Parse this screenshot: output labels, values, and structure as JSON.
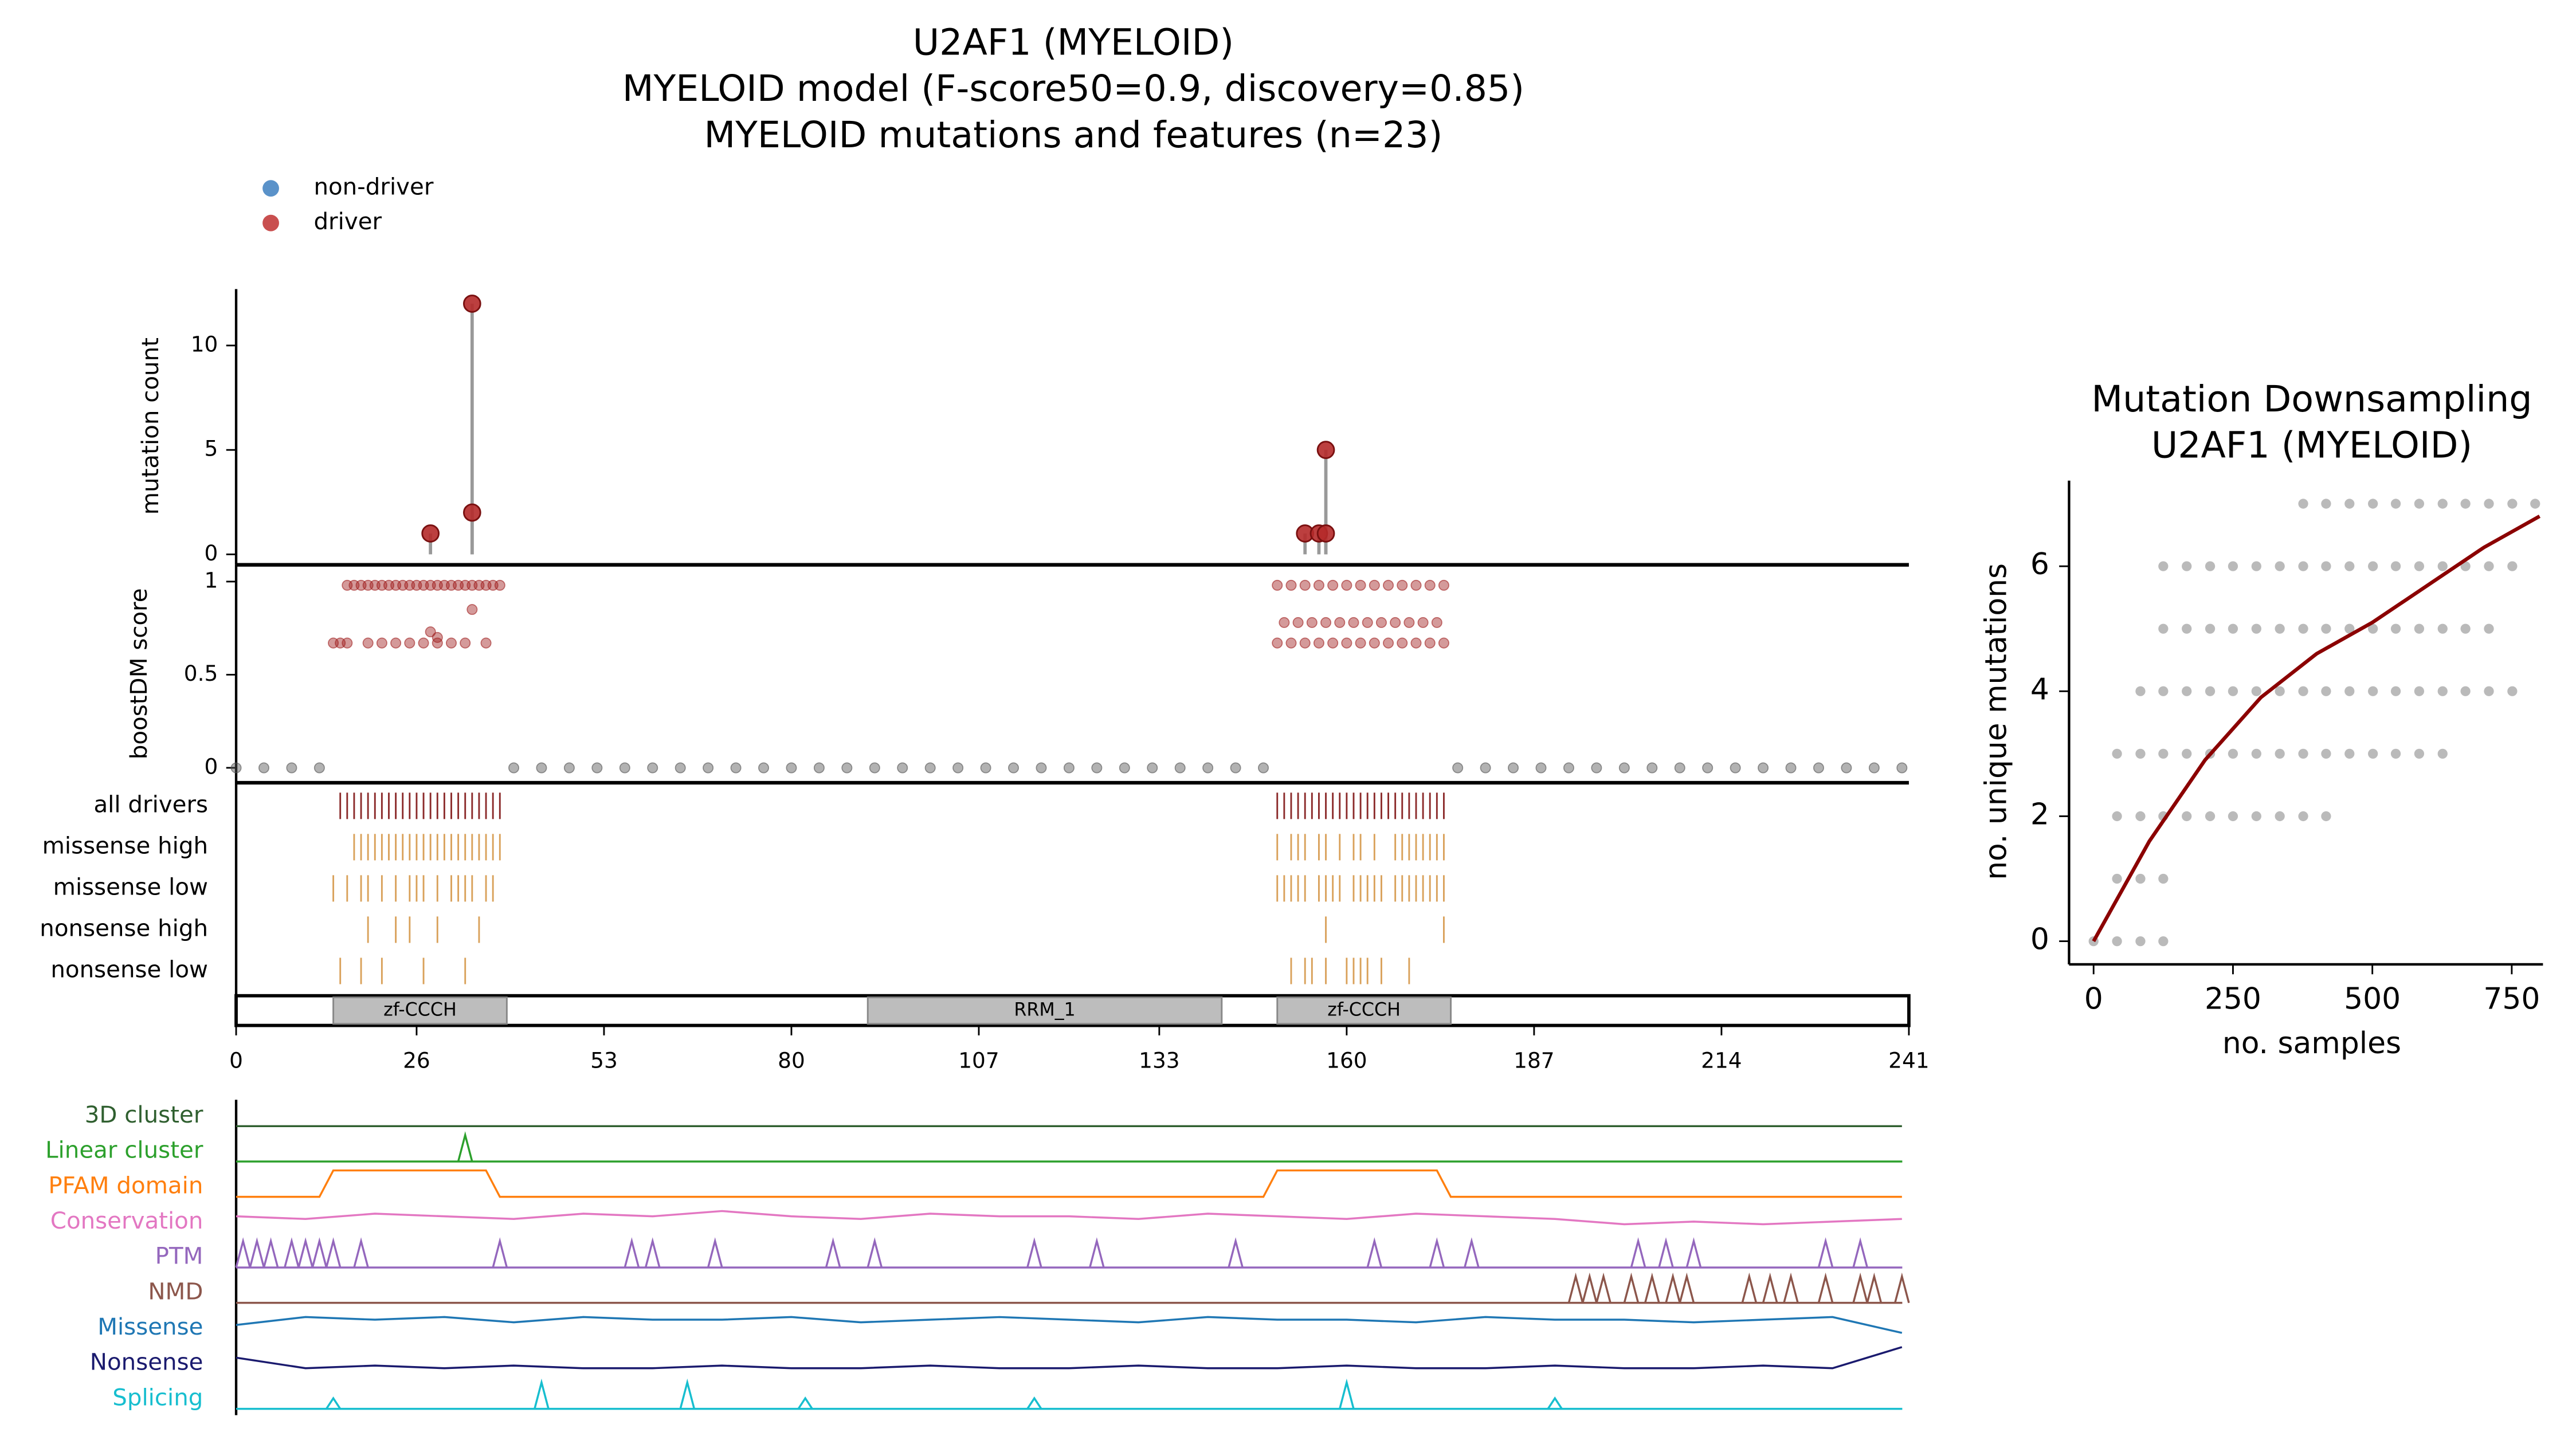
{
  "chart_data": [
    {
      "type": "lollipop",
      "title": [
        "U2AF1 (MYELOID)",
        "MYELOID model (F-score50=0.9, discovery=0.85)",
        "MYELOID mutations and features (n=23)"
      ],
      "ylabel": "mutation count",
      "x": [
        28,
        34,
        34,
        154,
        156,
        157,
        157
      ],
      "values": [
        1,
        2,
        12,
        1,
        1,
        1,
        5
      ],
      "color": "#b52a2a",
      "stem_color": "#999999",
      "ylim": [
        -0.5,
        12.7
      ],
      "yticks": [
        0,
        5,
        10
      ]
    },
    {
      "type": "scatter",
      "ylabel": "boostDM score",
      "legend": "top-left",
      "series": [
        {
          "name": "non-driver",
          "color": "#3d7fbf",
          "point_color": "#555555",
          "x": [
            0,
            4,
            8,
            12,
            40,
            44,
            48,
            52,
            56,
            60,
            64,
            68,
            72,
            76,
            80,
            84,
            88,
            92,
            96,
            100,
            104,
            108,
            112,
            116,
            120,
            124,
            128,
            132,
            136,
            140,
            144,
            148,
            176,
            180,
            184,
            188,
            192,
            196,
            200,
            204,
            208,
            212,
            216,
            220,
            224,
            228,
            232,
            236,
            240
          ],
          "values": [
            0,
            0,
            0,
            0,
            0,
            0,
            0,
            0,
            0,
            0,
            0,
            0,
            0,
            0,
            0,
            0,
            0,
            0,
            0,
            0,
            0,
            0,
            0,
            0,
            0,
            0,
            0,
            0,
            0,
            0,
            0,
            0,
            0,
            0,
            0,
            0,
            0,
            0,
            0,
            0,
            0,
            0,
            0,
            0,
            0,
            0,
            0,
            0,
            0
          ]
        },
        {
          "name": "driver",
          "color": "#c03030",
          "point_color": "#a02020",
          "x": [
            16,
            17,
            18,
            19,
            20,
            21,
            22,
            23,
            24,
            25,
            26,
            27,
            28,
            29,
            30,
            31,
            32,
            33,
            34,
            35,
            36,
            37,
            38,
            14,
            15,
            16,
            19,
            21,
            23,
            25,
            27,
            29,
            31,
            33,
            36,
            28,
            29,
            34,
            150,
            152,
            154,
            156,
            158,
            160,
            162,
            164,
            166,
            168,
            170,
            172,
            174,
            151,
            153,
            155,
            157,
            159,
            161,
            163,
            165,
            167,
            169,
            171,
            173,
            150,
            152,
            154,
            156,
            158,
            160,
            162,
            164,
            166,
            168,
            170,
            172,
            174
          ],
          "values": [
            0.98,
            0.98,
            0.98,
            0.98,
            0.98,
            0.98,
            0.98,
            0.98,
            0.98,
            0.98,
            0.98,
            0.98,
            0.98,
            0.98,
            0.98,
            0.98,
            0.98,
            0.98,
            0.98,
            0.98,
            0.98,
            0.98,
            0.98,
            0.67,
            0.67,
            0.67,
            0.67,
            0.67,
            0.67,
            0.67,
            0.67,
            0.67,
            0.67,
            0.67,
            0.67,
            0.73,
            0.7,
            0.85,
            0.98,
            0.98,
            0.98,
            0.98,
            0.98,
            0.98,
            0.98,
            0.98,
            0.98,
            0.98,
            0.98,
            0.98,
            0.98,
            0.78,
            0.78,
            0.78,
            0.78,
            0.78,
            0.78,
            0.78,
            0.78,
            0.78,
            0.78,
            0.78,
            0.78,
            0.67,
            0.67,
            0.67,
            0.67,
            0.67,
            0.67,
            0.67,
            0.67,
            0.67,
            0.67,
            0.67,
            0.67,
            0.67
          ]
        }
      ],
      "ylim": [
        -0.08,
        1.09
      ],
      "yticks": [
        0,
        0.5,
        1
      ]
    },
    {
      "type": "tracks",
      "rows": [
        {
          "name": "all drivers",
          "color": "#8b2a2a",
          "positions": [
            15,
            16,
            17,
            18,
            19,
            20,
            21,
            22,
            23,
            24,
            25,
            26,
            27,
            28,
            29,
            30,
            31,
            32,
            33,
            34,
            35,
            36,
            37,
            38,
            150,
            151,
            152,
            153,
            154,
            155,
            156,
            157,
            158,
            159,
            160,
            161,
            162,
            163,
            164,
            165,
            166,
            167,
            168,
            169,
            170,
            171,
            172,
            173,
            174
          ]
        },
        {
          "name": "missense high",
          "color": "#d9a15a",
          "positions": [
            17,
            18,
            19,
            20,
            21,
            22,
            23,
            24,
            25,
            26,
            27,
            28,
            29,
            30,
            31,
            32,
            33,
            34,
            35,
            36,
            37,
            38,
            150,
            152,
            153,
            154,
            156,
            157,
            159,
            161,
            162,
            164,
            167,
            168,
            169,
            170,
            171,
            172,
            173,
            174
          ]
        },
        {
          "name": "missense low",
          "color": "#d9a15a",
          "positions": [
            14,
            16,
            18,
            19,
            21,
            23,
            25,
            26,
            27,
            29,
            31,
            32,
            33,
            34,
            36,
            37,
            150,
            151,
            152,
            153,
            154,
            156,
            157,
            158,
            159,
            161,
            162,
            163,
            164,
            165,
            167,
            168,
            169,
            170,
            171,
            172,
            173,
            174
          ]
        },
        {
          "name": "nonsense high",
          "color": "#d9a15a",
          "positions": [
            19,
            23,
            25,
            29,
            35,
            157,
            174
          ]
        },
        {
          "name": "nonsense low",
          "color": "#d9a15a",
          "positions": [
            15,
            18,
            21,
            27,
            33,
            152,
            154,
            155,
            157,
            160,
            161,
            162,
            163,
            165,
            169
          ]
        }
      ],
      "domains": [
        {
          "name": "zf-CCCH",
          "start": 14,
          "end": 39
        },
        {
          "name": "RRM_1",
          "start": 91,
          "end": 142
        },
        {
          "name": "zf-CCCH",
          "start": 150,
          "end": 175
        }
      ],
      "xlim": [
        0,
        241
      ],
      "xticks": [
        0,
        26,
        53,
        80,
        107,
        133,
        160,
        187,
        214,
        241
      ]
    },
    {
      "type": "feature_tracks",
      "tracks": [
        {
          "name": "3D cluster",
          "color": "#2f5f2f",
          "style": "line",
          "x": [
            0,
            240
          ],
          "values": [
            0,
            0
          ]
        },
        {
          "name": "Linear cluster",
          "color": "#2ca02c",
          "style": "spikes",
          "positions": [
            33
          ],
          "values": [
            1
          ]
        },
        {
          "name": "PFAM domain",
          "color": "#ff7f0e",
          "style": "line",
          "x": [
            0,
            12,
            14,
            36,
            38,
            148,
            150,
            173,
            175,
            240
          ],
          "values": [
            0,
            0,
            1,
            1,
            0,
            0,
            1,
            1,
            0,
            0
          ]
        },
        {
          "name": "Conservation",
          "color": "#e377c2",
          "style": "line",
          "x": [
            0,
            10,
            20,
            30,
            40,
            50,
            60,
            70,
            80,
            90,
            100,
            110,
            120,
            130,
            140,
            150,
            160,
            170,
            180,
            190,
            200,
            210,
            220,
            230,
            240
          ],
          "values": [
            0.6,
            0.5,
            0.7,
            0.6,
            0.5,
            0.7,
            0.6,
            0.8,
            0.6,
            0.5,
            0.7,
            0.6,
            0.6,
            0.5,
            0.7,
            0.6,
            0.5,
            0.7,
            0.6,
            0.5,
            0.3,
            0.4,
            0.3,
            0.4,
            0.5
          ]
        },
        {
          "name": "PTM",
          "color": "#9467bd",
          "style": "spikes",
          "positions": [
            1,
            3,
            5,
            8,
            10,
            12,
            14,
            18,
            38,
            57,
            60,
            69,
            86,
            92,
            115,
            124,
            144,
            164,
            173,
            178,
            202,
            206,
            210,
            229,
            234
          ],
          "values": [
            1,
            1,
            1,
            1,
            1,
            1,
            1,
            1,
            1,
            1,
            1,
            1,
            1,
            1,
            1,
            1,
            1,
            1,
            1,
            1,
            1,
            1,
            1,
            1,
            1
          ]
        },
        {
          "name": "NMD",
          "color": "#8c564b",
          "style": "spikes",
          "positions": [
            193,
            195,
            197,
            201,
            204,
            207,
            209,
            218,
            221,
            224,
            229,
            234,
            236,
            240
          ],
          "values": [
            1,
            1,
            1,
            1,
            1,
            1,
            1,
            1,
            1,
            1,
            1,
            1,
            1,
            1
          ]
        },
        {
          "name": "Missense",
          "color": "#1f77b4",
          "style": "line",
          "x": [
            0,
            10,
            20,
            30,
            40,
            50,
            60,
            70,
            80,
            90,
            100,
            110,
            120,
            130,
            140,
            150,
            160,
            170,
            180,
            190,
            200,
            210,
            220,
            230,
            240
          ],
          "values": [
            0.5,
            0.8,
            0.7,
            0.8,
            0.6,
            0.8,
            0.7,
            0.7,
            0.8,
            0.6,
            0.7,
            0.8,
            0.7,
            0.6,
            0.8,
            0.7,
            0.7,
            0.6,
            0.8,
            0.7,
            0.7,
            0.6,
            0.7,
            0.8,
            0.2
          ]
        },
        {
          "name": "Nonsense",
          "color": "#1a1a6e",
          "style": "line",
          "x": [
            0,
            10,
            20,
            30,
            40,
            50,
            60,
            70,
            80,
            90,
            100,
            110,
            120,
            130,
            140,
            150,
            160,
            170,
            180,
            190,
            200,
            210,
            220,
            230,
            240
          ],
          "values": [
            0.6,
            0.2,
            0.3,
            0.2,
            0.3,
            0.2,
            0.2,
            0.3,
            0.2,
            0.2,
            0.3,
            0.2,
            0.2,
            0.3,
            0.2,
            0.2,
            0.3,
            0.2,
            0.2,
            0.3,
            0.2,
            0.2,
            0.3,
            0.2,
            1
          ]
        },
        {
          "name": "Splicing",
          "color": "#17becf",
          "style": "spikes",
          "positions": [
            14,
            44,
            65,
            82,
            115,
            160,
            190
          ],
          "values": [
            0.4,
            1,
            1,
            0.4,
            0.4,
            1,
            0.4
          ]
        }
      ]
    },
    {
      "type": "scatter_fit",
      "title": [
        "Mutation Downsampling",
        "U2AF1 (MYELOID)"
      ],
      "xlabel": "no. samples",
      "ylabel": "no. unique mutations",
      "series": [
        {
          "color": "#666666",
          "x": [
            0,
            42,
            84,
            125
          ],
          "values": [
            0,
            0,
            0,
            0
          ]
        },
        {
          "color": "#666666",
          "x": [
            42,
            84,
            125
          ],
          "values": [
            1,
            1,
            1
          ]
        },
        {
          "color": "#666666",
          "x": [
            42,
            84,
            125,
            167,
            209,
            250,
            292,
            334,
            376,
            417
          ],
          "values": [
            2,
            2,
            2,
            2,
            2,
            2,
            2,
            2,
            2,
            2
          ]
        },
        {
          "color": "#666666",
          "x": [
            42,
            84,
            125,
            167,
            209,
            250,
            292,
            334,
            376,
            417,
            459,
            501,
            542,
            584,
            626
          ],
          "values": [
            3,
            3,
            3,
            3,
            3,
            3,
            3,
            3,
            3,
            3,
            3,
            3,
            3,
            3,
            3
          ]
        },
        {
          "color": "#666666",
          "x": [
            84,
            125,
            167,
            209,
            250,
            292,
            334,
            376,
            417,
            459,
            501,
            542,
            584,
            626,
            667,
            709,
            751
          ],
          "values": [
            4,
            4,
            4,
            4,
            4,
            4,
            4,
            4,
            4,
            4,
            4,
            4,
            4,
            4,
            4,
            4,
            4
          ]
        },
        {
          "color": "#666666",
          "x": [
            125,
            167,
            209,
            250,
            292,
            334,
            376,
            417,
            459,
            501,
            542,
            584,
            626,
            667,
            709
          ],
          "values": [
            5,
            5,
            5,
            5,
            5,
            5,
            5,
            5,
            5,
            5,
            5,
            5,
            5,
            5,
            5
          ]
        },
        {
          "color": "#666666",
          "x": [
            125,
            167,
            209,
            250,
            292,
            334,
            376,
            417,
            459,
            501,
            542,
            584,
            626,
            667,
            709,
            751
          ],
          "values": [
            6,
            6,
            6,
            6,
            6,
            6,
            6,
            6,
            6,
            6,
            6,
            6,
            6,
            6,
            6,
            6
          ]
        },
        {
          "color": "#666666",
          "x": [
            376,
            417,
            459,
            501,
            542,
            584,
            626,
            667,
            709,
            751,
            792
          ],
          "values": [
            7,
            7,
            7,
            7,
            7,
            7,
            7,
            7,
            7,
            7,
            7
          ]
        }
      ],
      "fit": {
        "color": "#8b0000",
        "x": [
          0,
          100,
          200,
          300,
          400,
          500,
          600,
          700,
          800
        ],
        "values": [
          0,
          1.6,
          2.9,
          3.9,
          4.6,
          5.1,
          5.7,
          6.3,
          6.8
        ]
      },
      "xlim": [
        -44,
        806
      ],
      "ylim": [
        -0.37,
        7.37
      ],
      "xticks": [
        0,
        250,
        500,
        750
      ],
      "yticks": [
        0,
        2,
        4,
        6
      ]
    }
  ]
}
